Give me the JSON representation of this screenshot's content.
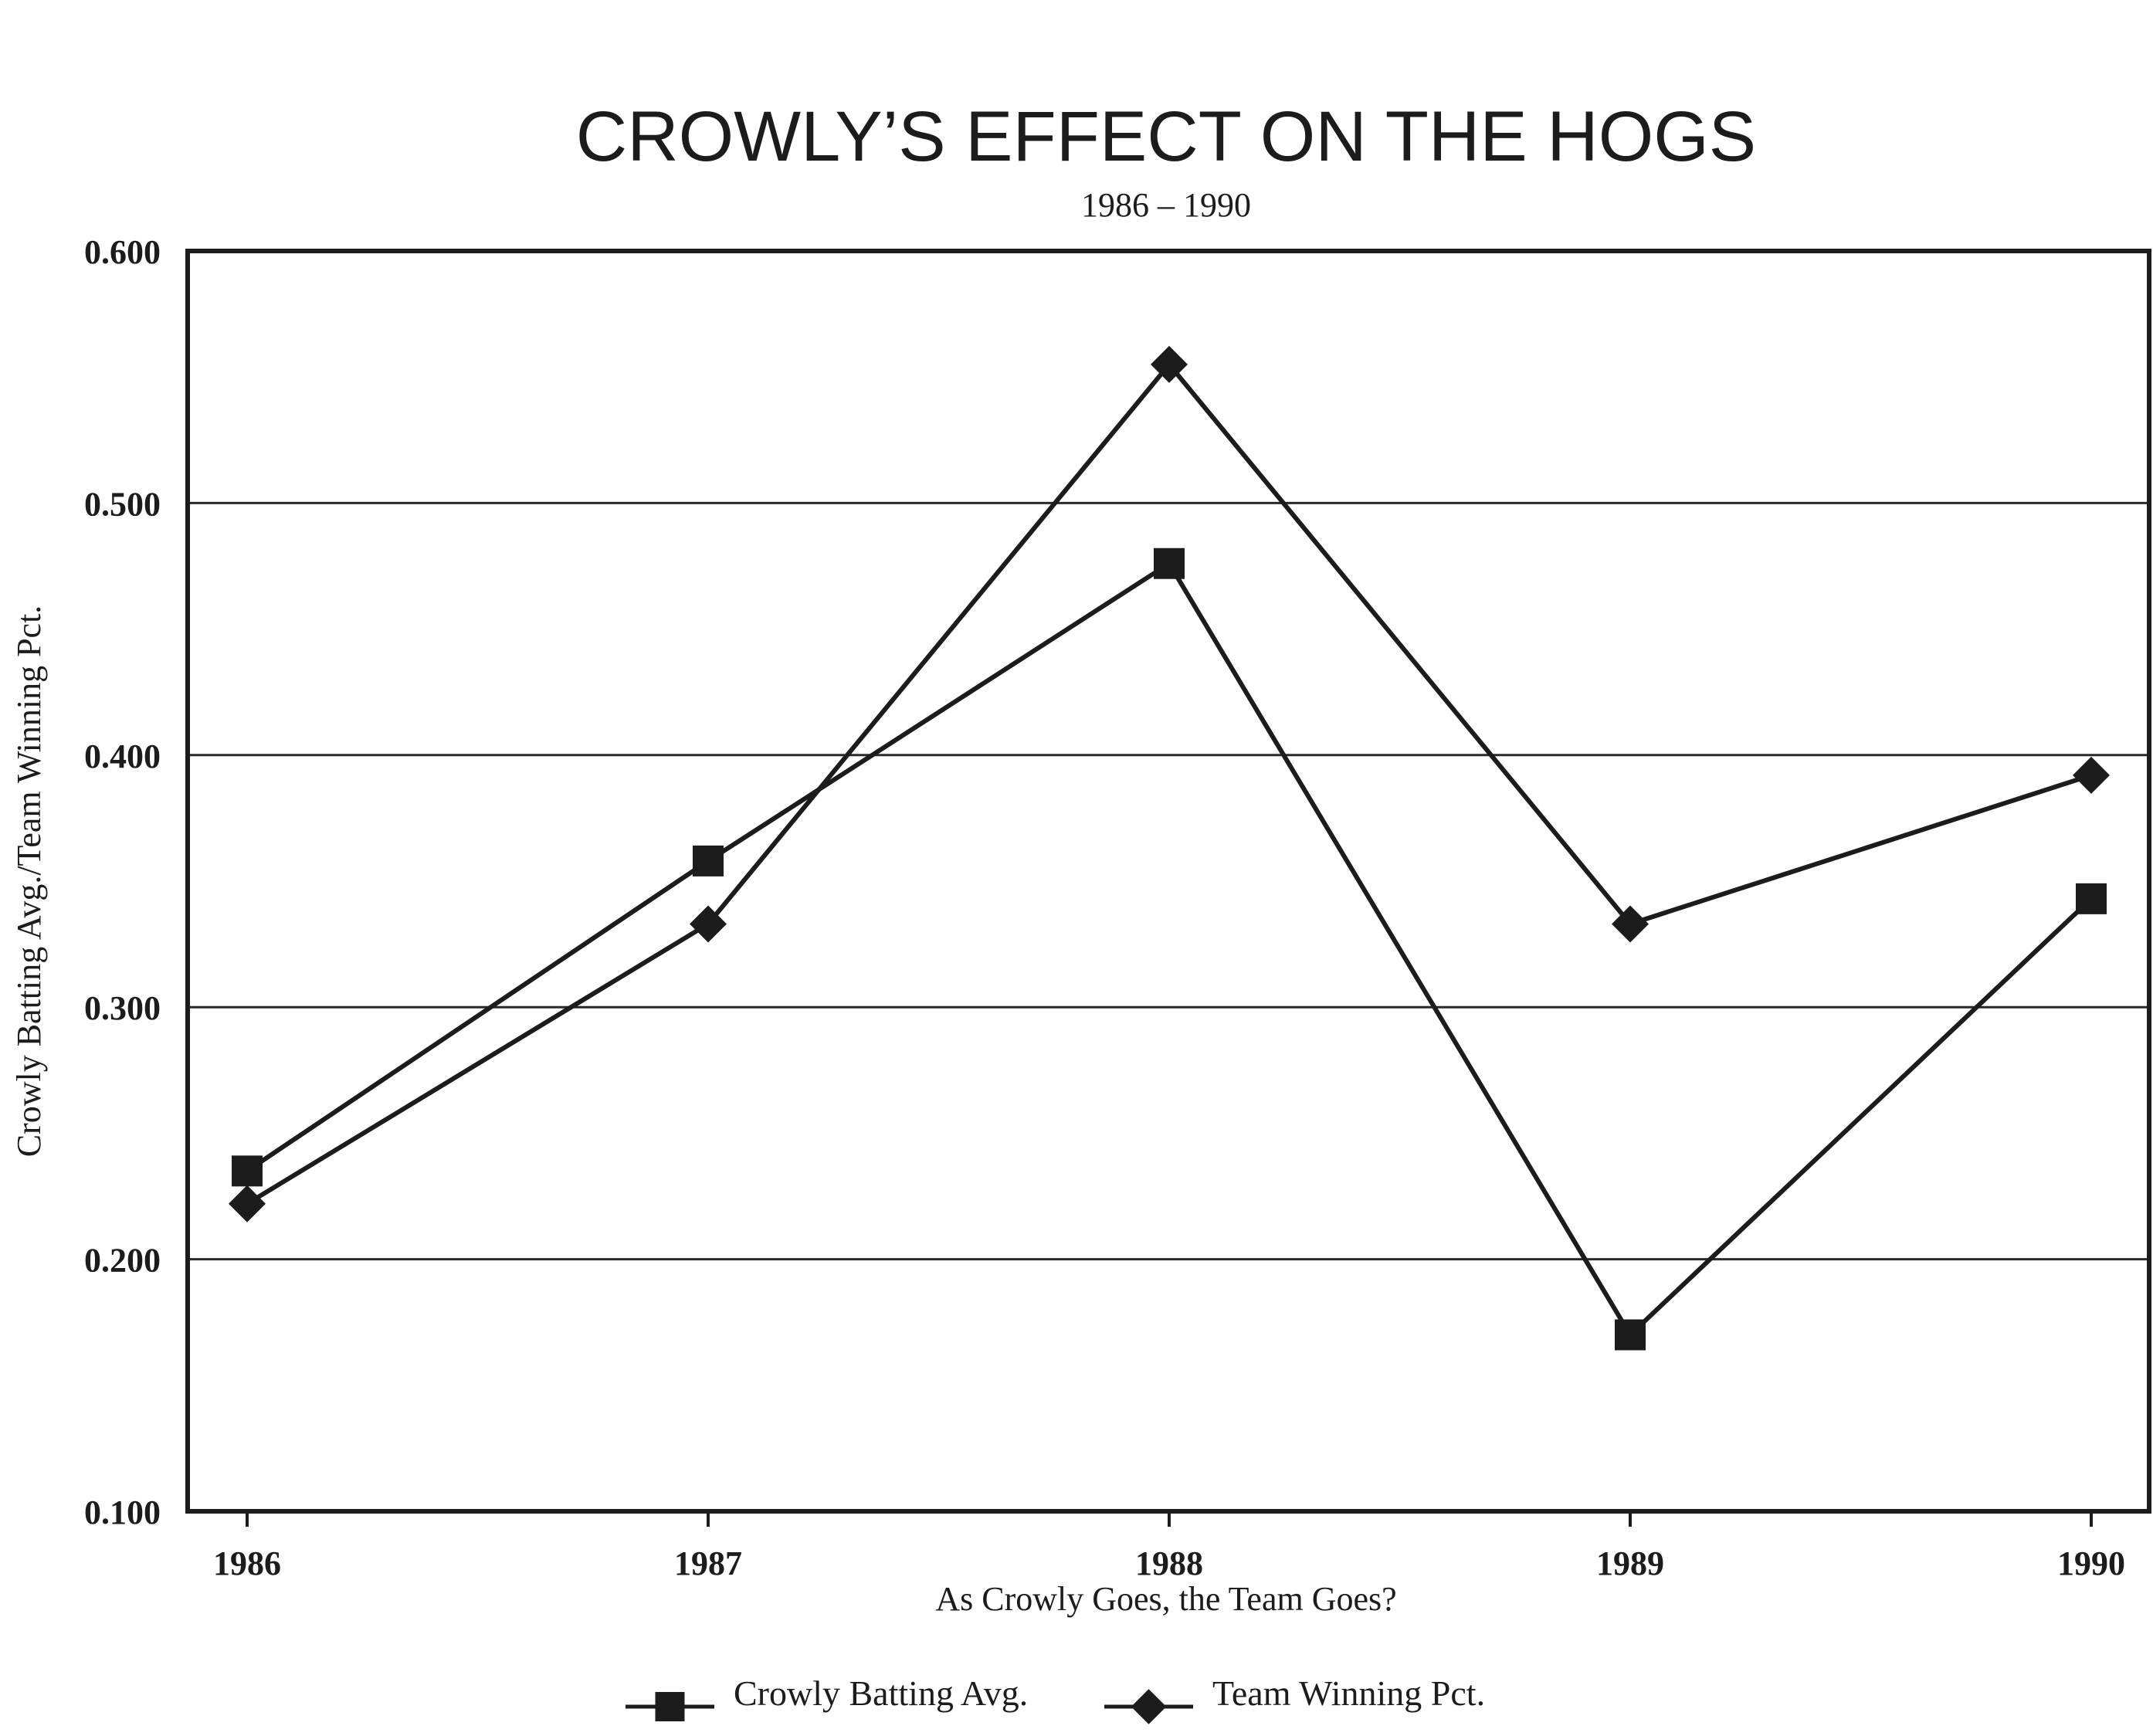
{
  "chart_data": {
    "type": "line",
    "title": "CROWLY’S EFFECT ON THE HOGS",
    "subtitle": "1986 – 1990",
    "xlabel": "As Crowly Goes, the Team Goes?",
    "ylabel": "Crowly Batting Avg./Team Winning Pct.",
    "categories": [
      "1986",
      "1987",
      "1988",
      "1989",
      "1990"
    ],
    "yticks": [
      "0.100",
      "0.200",
      "0.300",
      "0.400",
      "0.500",
      "0.600"
    ],
    "ylim": [
      0.1,
      0.6
    ],
    "grid": true,
    "legend_position": "bottom",
    "series": [
      {
        "name": "Crowly Batting Avg.",
        "marker": "square",
        "color": "#1c1c1c",
        "values": [
          0.235,
          0.358,
          0.476,
          0.17,
          0.343
        ]
      },
      {
        "name": "Team Winning Pct.",
        "marker": "diamond",
        "color": "#1c1c1c",
        "values": [
          0.222,
          0.333,
          0.555,
          0.333,
          0.392
        ]
      }
    ]
  }
}
